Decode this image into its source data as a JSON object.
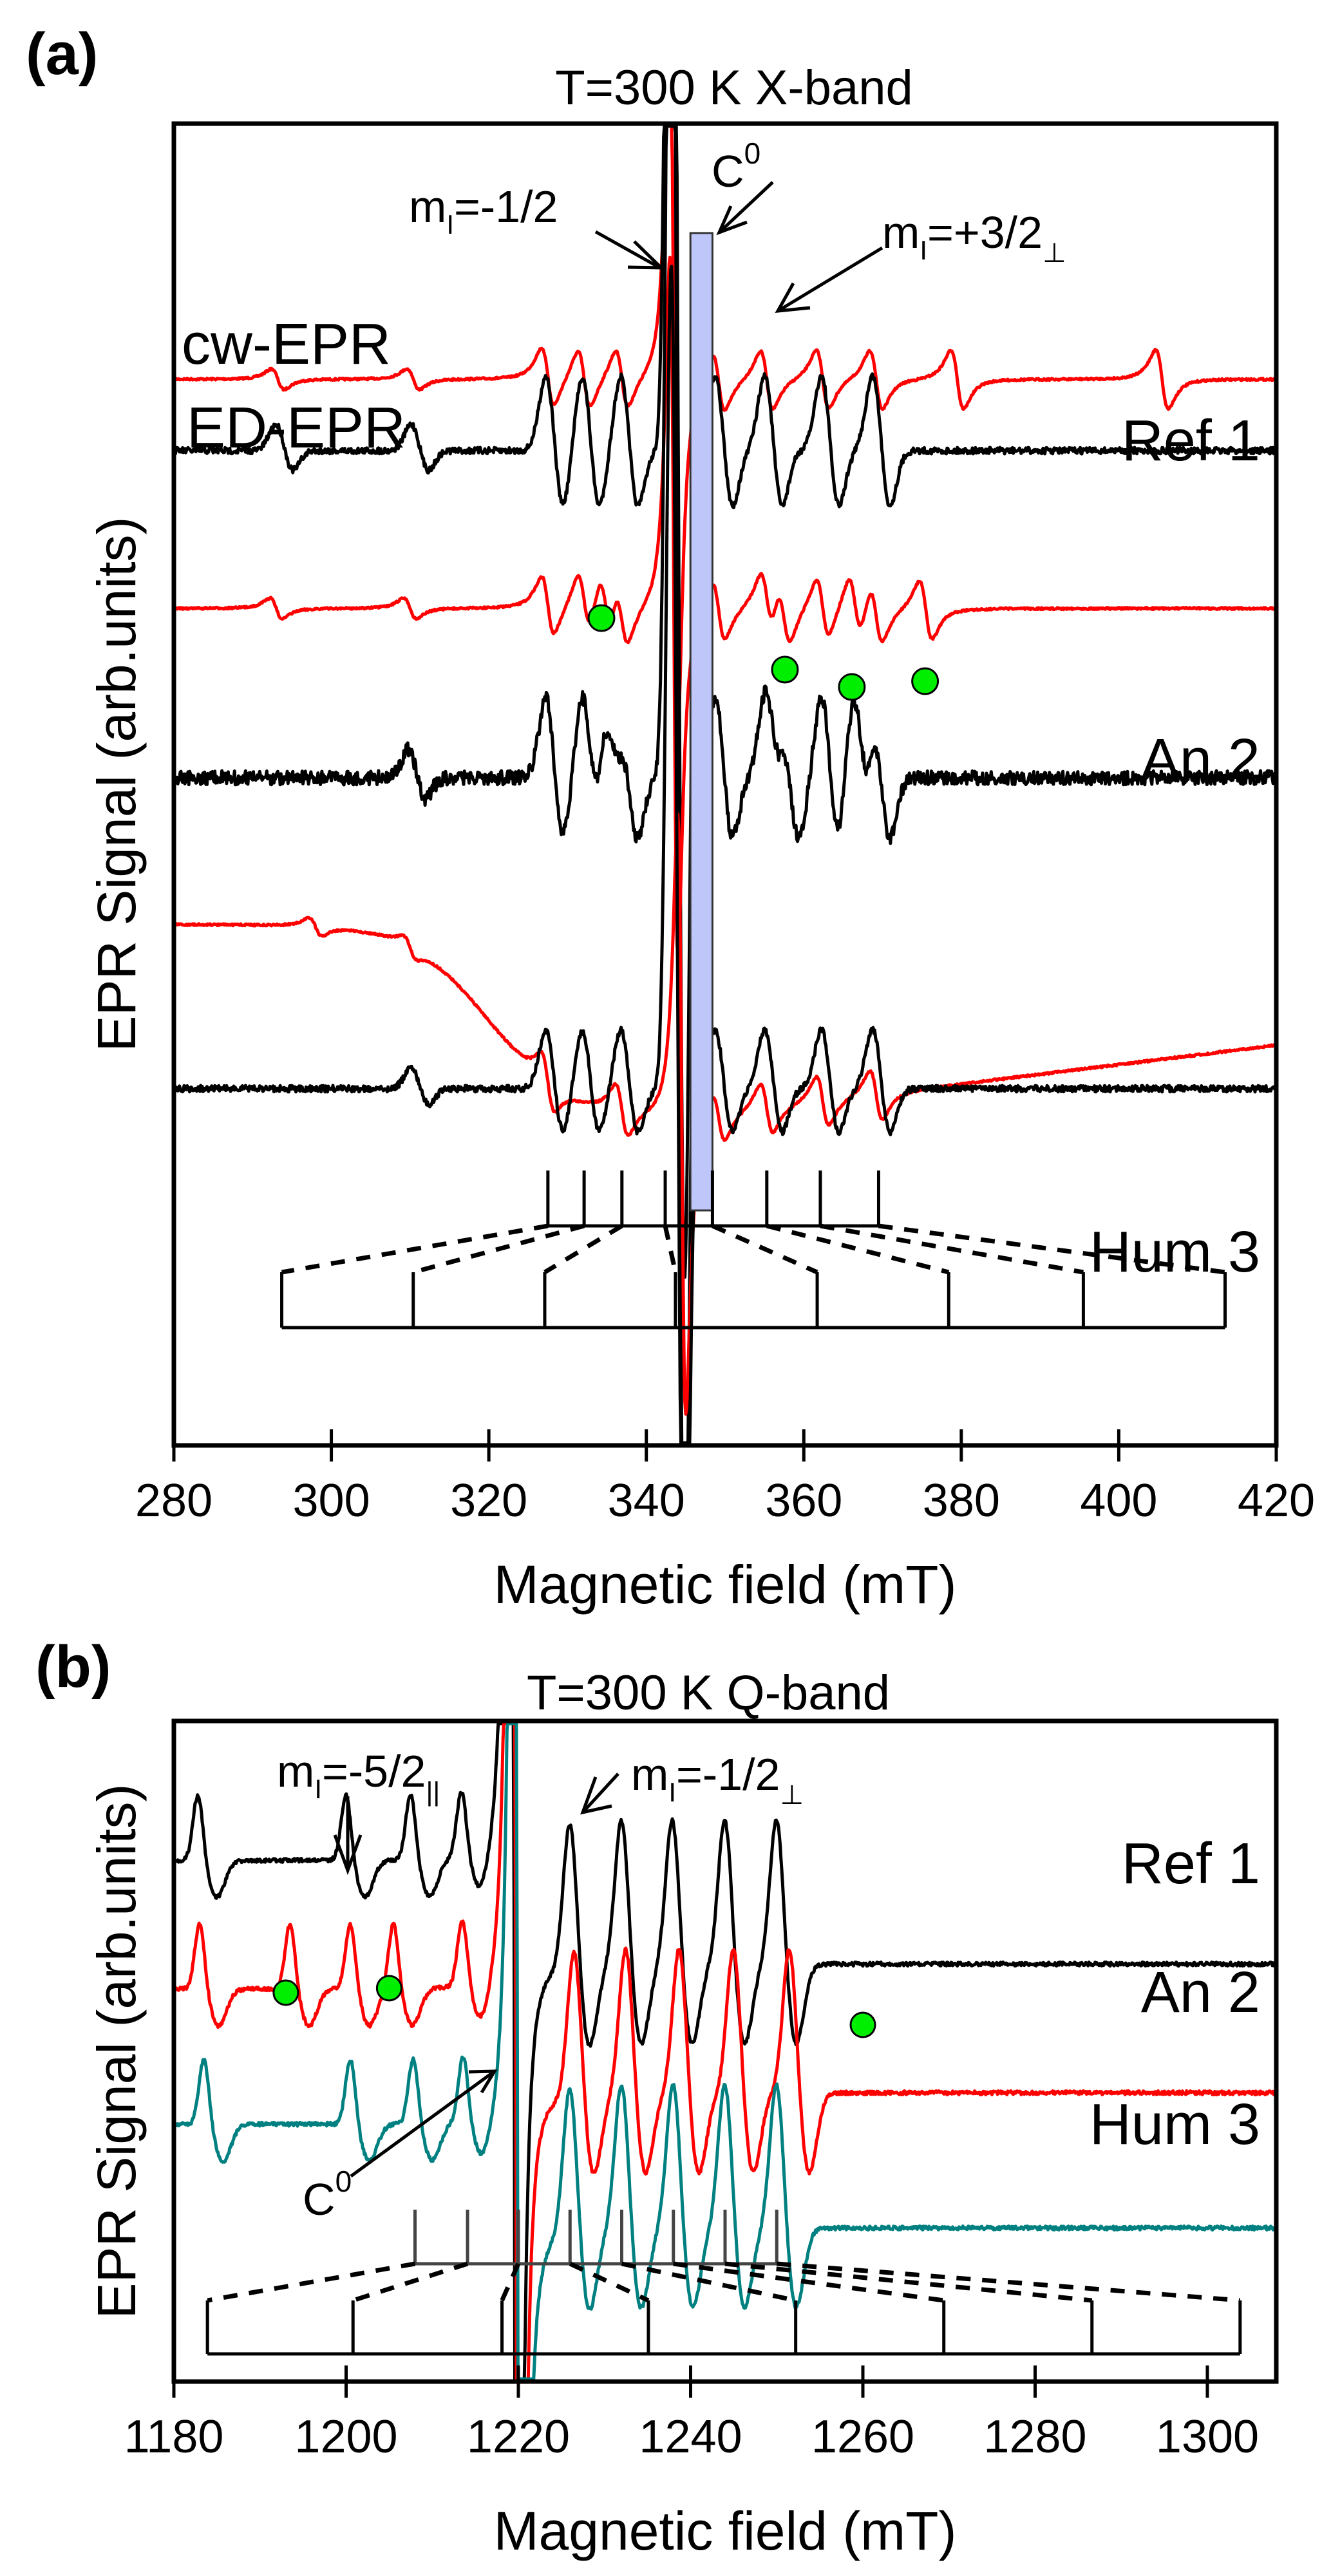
{
  "figure": {
    "panel_a_letter": "(a)",
    "panel_b_letter": "(b)"
  },
  "chart_data": [
    {
      "panel": "a",
      "type": "line",
      "title": "T=300 K  X-band",
      "xlabel": "Magnetic field (mT)",
      "ylabel": "EPR Signal (arb.units)",
      "xlim": [
        280,
        420
      ],
      "xticks": [
        280,
        300,
        320,
        340,
        360,
        380,
        400,
        420
      ],
      "grid": false,
      "legend": [
        {
          "label": "cw-EPR",
          "color": "#ff0000"
        },
        {
          "label": "ED-EPR",
          "color": "#000000"
        }
      ],
      "colors": {
        "cw": "#ff0000",
        "ed": "#000000",
        "c0_box": "#bfc7fa",
        "marker": "#00ee00"
      },
      "samples": [
        {
          "name": "Ref 1",
          "label_color": "#000000",
          "series": [
            {
              "name": "cw-EPR",
              "color": "#ff0000",
              "baseline": 0.0,
              "peaks_mT": [
                293.2,
                310.4,
                327.5,
                332.1,
                336.9,
                343.5,
                349.2,
                355.3,
                362.4,
                369.2,
                379.5,
                405.5
              ],
              "kind": "derivative"
            },
            {
              "name": "ED-EPR",
              "color": "#000000",
              "baseline": -1.0,
              "peaks_mT": [
                293.2,
                310.4,
                327.5,
                332.1,
                337.0,
                343.2,
                349.0,
                355.3,
                362.5,
                369.0
              ],
              "kind": "absorption-like"
            }
          ]
        },
        {
          "name": "An 2",
          "label_color": "#000000",
          "series": [
            {
              "name": "cw-EPR",
              "color": "#ff0000",
              "baseline": -3.1,
              "peaks_mT": [
                293.0,
                310.0,
                327.5,
                332.1,
                334.8,
                336.9,
                343.5,
                349.2,
                355.3,
                357.5,
                362.4,
                366.5,
                369.2,
                375.5
              ],
              "kind": "derivative"
            },
            {
              "name": "ED-EPR",
              "color": "#000000",
              "baseline": -5.5,
              "peaks_mT": [
                310.0,
                327.5,
                332.1,
                334.8,
                337.0,
                343.2,
                349.0,
                355.3,
                357.5,
                362.5,
                366.5,
                369.0
              ],
              "kind": "absorption-like"
            }
          ],
          "markers_mT": [
            334.3,
            357.6,
            366.1,
            375.4
          ]
        },
        {
          "name": "Hum 3",
          "label_color": "#000000",
          "series": [
            {
              "name": "cw-EPR",
              "color": "#ff0000",
              "baseline": -9.0,
              "peaks_mT": [
                298.0,
                310.0,
                327.5,
                336.9,
                344.5,
                349.2,
                355.3,
                362.4,
                369.2
              ],
              "kind": "derivative"
            },
            {
              "name": "ED-EPR",
              "color": "#000000",
              "baseline": -10.0,
              "peaks_mT": [
                310.4,
                327.5,
                332.1,
                337.0,
                343.2,
                349.0,
                355.3,
                362.5,
                369.0
              ],
              "kind": "absorption-like"
            }
          ]
        }
      ],
      "annotations": [
        {
          "text": "m",
          "sub": "I",
          "rest": "=-1/2",
          "points_to_mT": 343.0
        },
        {
          "text": "C",
          "sup": "0",
          "points_to_mT": 348.4
        },
        {
          "text": "m",
          "sub": "I",
          "rest": "=+3/2",
          "rest_sub": "⊥",
          "points_to_mT": 355.5
        }
      ],
      "c0_region_mT": [
        345.6,
        348.4
      ],
      "stick_diagram": {
        "upper_mT": [
          327.5,
          332.1,
          336.9,
          342.4,
          348.4,
          355.3,
          362.1,
          369.5
        ],
        "lower_mT": [
          293.7,
          310.4,
          327.1,
          343.7,
          361.7,
          378.4,
          395.5,
          413.5
        ]
      }
    },
    {
      "panel": "b",
      "type": "line",
      "title": "T=300 K  Q-band",
      "xlabel": "Magnetic field (mT)",
      "ylabel": "EPR Signal (arb.units)",
      "xlim": [
        1180,
        1308
      ],
      "xticks": [
        1180,
        1200,
        1220,
        1240,
        1260,
        1280,
        1300
      ],
      "grid": false,
      "samples": [
        {
          "name": "Ref 1",
          "color": "#000000",
          "label_color": "#000000",
          "baseline": 0.0,
          "peaks_mT": [
            1182.8,
            1200.0,
            1207.5,
            1213.4,
            1226.0,
            1232.0,
            1237.9,
            1244.0,
            1250.0
          ]
        },
        {
          "name": "An 2",
          "color": "#ff0000",
          "label_color": "#ff0000",
          "baseline": -1.4,
          "peaks_mT": [
            1183.0,
            1193.5,
            1200.5,
            1205.5,
            1213.5,
            1226.5,
            1232.5,
            1238.7,
            1245.0,
            1251.5
          ],
          "markers_mT": [
            1193.0,
            1205.0,
            1260.0
          ]
        },
        {
          "name": "Hum 3",
          "color": "#008080",
          "label_color": "#008080",
          "baseline": -2.8,
          "peaks_mT": [
            1183.5,
            1200.5,
            1207.8,
            1213.6,
            1226.0,
            1232.0,
            1238.0,
            1244.0,
            1250.0
          ]
        }
      ],
      "annotations": [
        {
          "text": "m",
          "sub": "I",
          "rest": "=-5/2",
          "rest_sub": "||",
          "points_to_mT": 1200.0
        },
        {
          "text": "m",
          "sub": "I",
          "rest": "=-1/2",
          "rest_sub": "⊥",
          "points_to_mT": 1226.0
        },
        {
          "text": "C",
          "sup": "0",
          "points_to_mT": 1219.0
        }
      ],
      "central_line_mT": 1219.5,
      "stick_diagram": {
        "upper_mT": [
          1208.0,
          1214.1,
          1220.0,
          1226.0,
          1232.0,
          1238.0,
          1244.0,
          1250.0
        ],
        "lower_mT": [
          1183.9,
          1200.8,
          1218.1,
          1235.1,
          1252.2,
          1269.4,
          1286.6,
          1303.8
        ]
      }
    }
  ]
}
